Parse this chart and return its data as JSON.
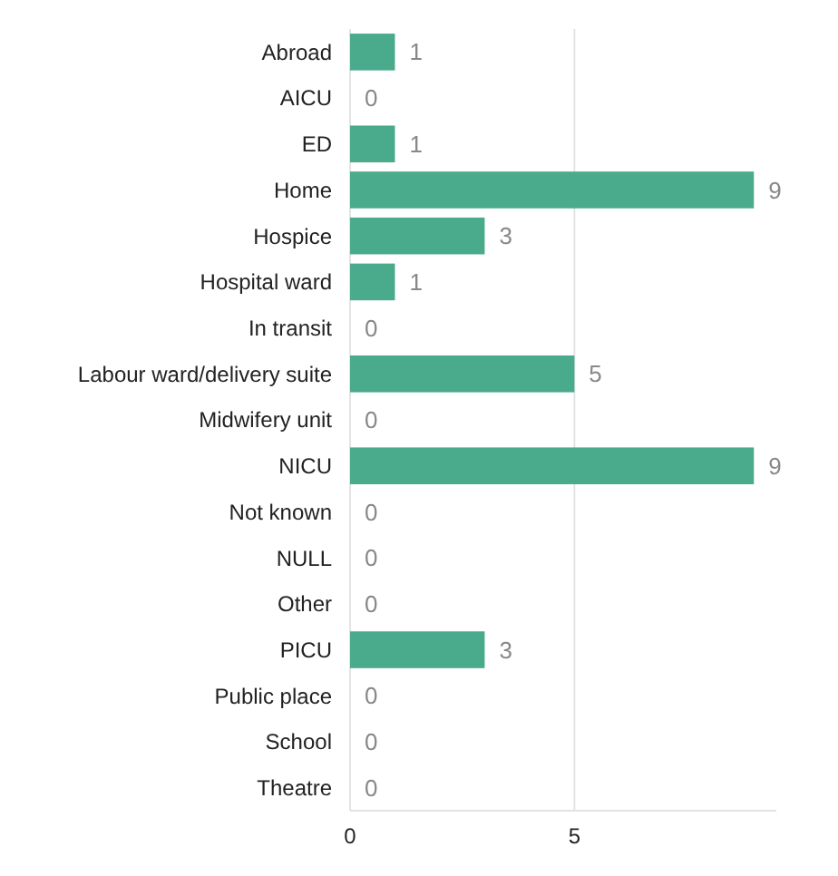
{
  "chart_data": {
    "type": "bar",
    "orientation": "horizontal",
    "categories": [
      "Abroad",
      "AICU",
      "ED",
      "Home",
      "Hospice",
      "Hospital ward",
      "In transit",
      "Labour ward/delivery suite",
      "Midwifery unit",
      "NICU",
      "Not known",
      "NULL",
      "Other",
      "PICU",
      "Public place",
      "School",
      "Theatre"
    ],
    "values": [
      1,
      0,
      1,
      9,
      3,
      1,
      0,
      5,
      0,
      9,
      0,
      0,
      0,
      3,
      0,
      0,
      0
    ],
    "color": "#4aaa8c",
    "xlim": [
      0,
      9.5
    ],
    "xticks": [
      0,
      5
    ],
    "grid": "x",
    "data_labels": true
  }
}
